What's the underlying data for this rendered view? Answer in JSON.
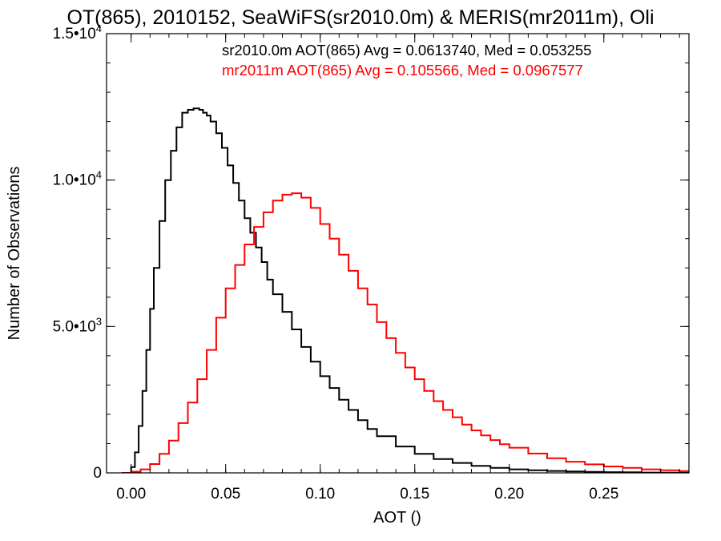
{
  "chart_data": {
    "type": "line",
    "title": "OT(865), 2010152, SeaWiFS(sr2010.0m) & MERIS(mr2011m), Oli",
    "xlabel": "AOT ()",
    "ylabel": "Number of Observations",
    "xlim": [
      -0.013,
      0.295
    ],
    "ylim": [
      0,
      15000
    ],
    "x_ticks": [
      {
        "value": 0.0,
        "label": "0.00"
      },
      {
        "value": 0.05,
        "label": "0.05"
      },
      {
        "value": 0.1,
        "label": "0.10"
      },
      {
        "value": 0.15,
        "label": "0.15"
      },
      {
        "value": 0.2,
        "label": "0.20"
      },
      {
        "value": 0.25,
        "label": "0.25"
      }
    ],
    "x_minor_step": 0.01,
    "y_ticks": [
      {
        "value": 0,
        "mant": "0",
        "exp": ""
      },
      {
        "value": 5000,
        "mant": "5.0•10",
        "exp": "3"
      },
      {
        "value": 10000,
        "mant": "1.0•10",
        "exp": "4"
      },
      {
        "value": 15000,
        "mant": "1.5•10",
        "exp": "4"
      }
    ],
    "y_minor_step": 1000,
    "grid": false,
    "step_style": "histogram",
    "annotations": [
      {
        "text": "sr2010.0m AOT(865) Avg = 0.0613740, Med = 0.053255",
        "color": "#000000"
      },
      {
        "text": "mr2011m AOT(865) Avg = 0.105566, Med = 0.0967577",
        "color": "#ff0000"
      }
    ],
    "series": [
      {
        "color": "#000000",
        "x": [
          -0.005,
          0.0,
          0.002,
          0.004,
          0.006,
          0.008,
          0.01,
          0.012,
          0.015,
          0.018,
          0.021,
          0.024,
          0.027,
          0.03,
          0.033,
          0.036,
          0.038,
          0.04,
          0.042,
          0.045,
          0.048,
          0.051,
          0.054,
          0.057,
          0.06,
          0.063,
          0.066,
          0.069,
          0.072,
          0.075,
          0.08,
          0.085,
          0.09,
          0.095,
          0.1,
          0.105,
          0.11,
          0.115,
          0.12,
          0.125,
          0.13,
          0.14,
          0.15,
          0.16,
          0.17,
          0.18,
          0.19,
          0.2,
          0.21,
          0.22,
          0.23,
          0.24,
          0.25,
          0.26,
          0.27,
          0.28,
          0.29
        ],
        "y": [
          0,
          200,
          700,
          1600,
          2800,
          4200,
          5600,
          7000,
          8600,
          10000,
          11000,
          11800,
          12300,
          12400,
          12450,
          12400,
          12300,
          12200,
          12000,
          11600,
          11100,
          10500,
          9900,
          9300,
          8700,
          8200,
          7700,
          7200,
          6600,
          6100,
          5500,
          4900,
          4300,
          3800,
          3300,
          2900,
          2500,
          2150,
          1800,
          1500,
          1250,
          900,
          650,
          470,
          340,
          240,
          170,
          120,
          90,
          65,
          50,
          35,
          25,
          18,
          12,
          8,
          5
        ]
      },
      {
        "color": "#ff0000",
        "x": [
          -0.005,
          0.0,
          0.005,
          0.01,
          0.015,
          0.02,
          0.025,
          0.03,
          0.035,
          0.04,
          0.045,
          0.05,
          0.055,
          0.06,
          0.065,
          0.07,
          0.075,
          0.08,
          0.085,
          0.09,
          0.095,
          0.1,
          0.105,
          0.11,
          0.115,
          0.12,
          0.125,
          0.13,
          0.135,
          0.14,
          0.145,
          0.15,
          0.155,
          0.16,
          0.165,
          0.17,
          0.175,
          0.18,
          0.185,
          0.19,
          0.195,
          0.2,
          0.21,
          0.22,
          0.23,
          0.24,
          0.25,
          0.26,
          0.27,
          0.28,
          0.29
        ],
        "y": [
          0,
          40,
          120,
          300,
          650,
          1100,
          1700,
          2400,
          3200,
          4200,
          5300,
          6300,
          7100,
          7800,
          8400,
          8900,
          9300,
          9500,
          9550,
          9400,
          9050,
          8500,
          8000,
          7450,
          6900,
          6300,
          5750,
          5150,
          4600,
          4100,
          3600,
          3200,
          2800,
          2450,
          2150,
          1900,
          1650,
          1450,
          1280,
          1120,
          980,
          860,
          660,
          500,
          380,
          290,
          220,
          170,
          120,
          90,
          60
        ]
      }
    ]
  }
}
